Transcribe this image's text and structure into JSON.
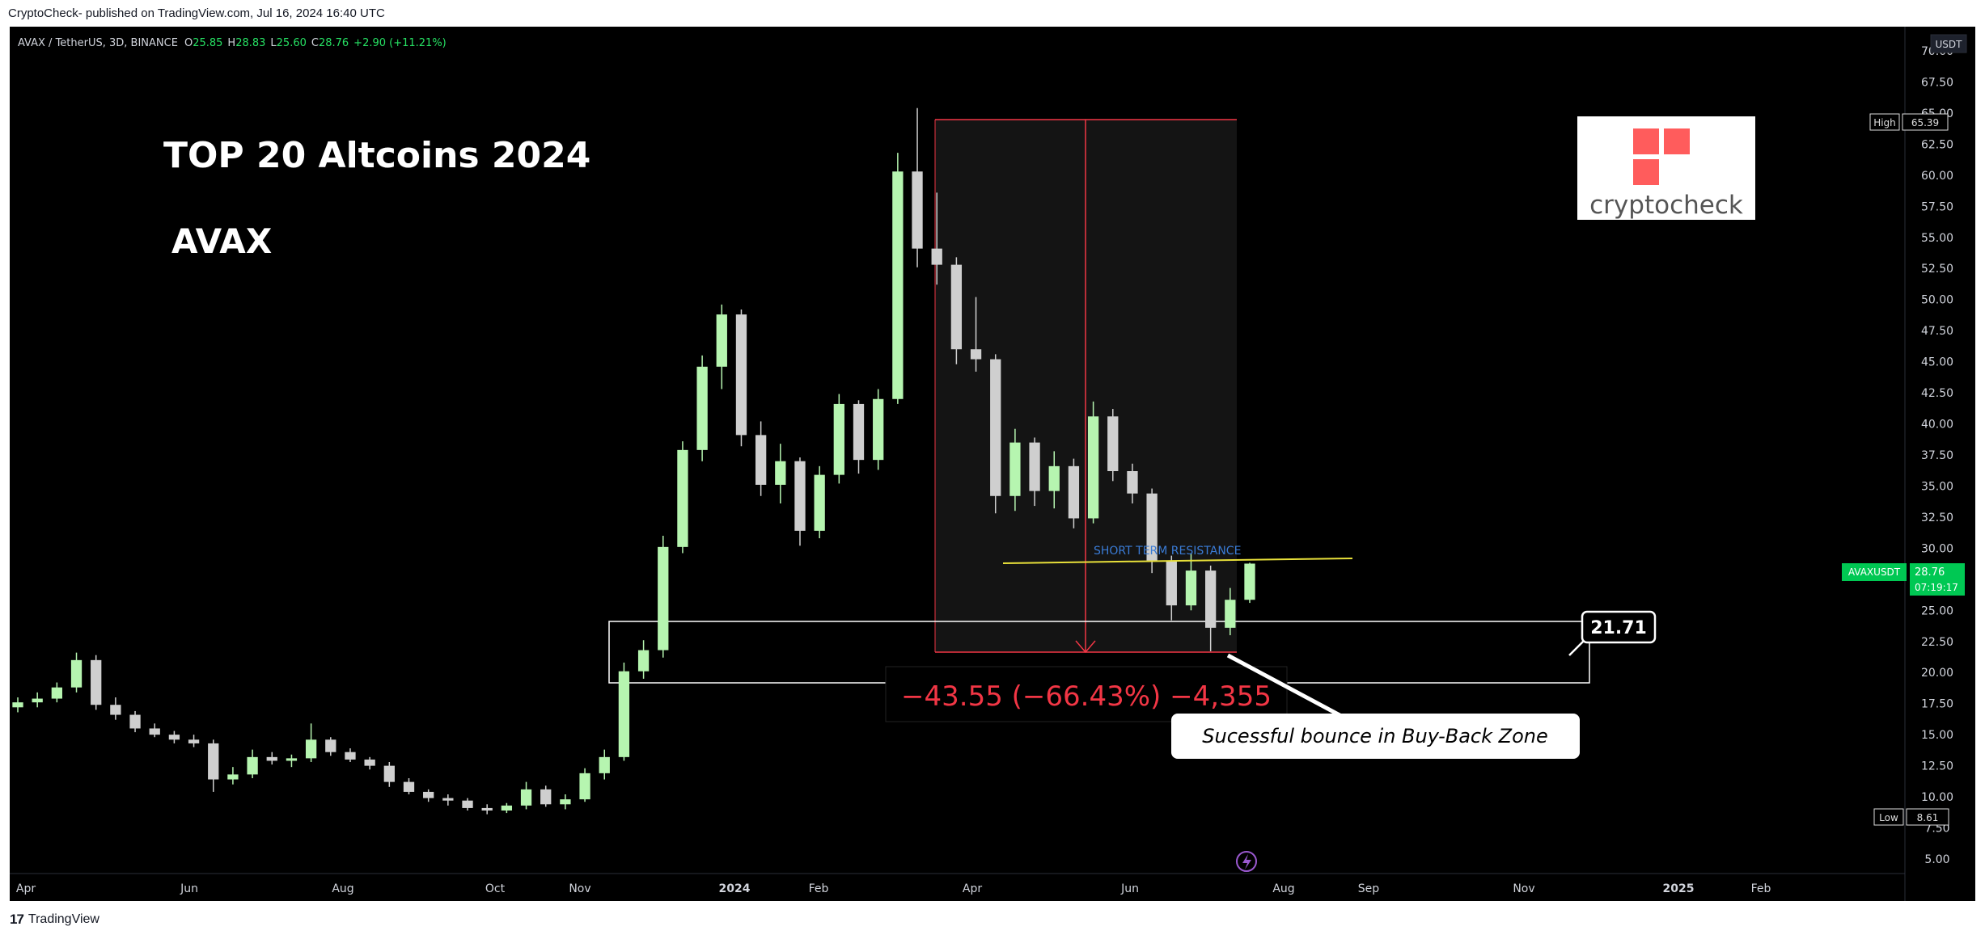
{
  "header": {
    "published": "CryptoCheck- published on TradingView.com, Jul 16, 2024 16:40 UTC"
  },
  "footer": {
    "brand": "TradingView"
  },
  "symbol_bar": {
    "symbol": "AVAX / TetherUS, 3D, BINANCE",
    "o_label": "O",
    "o": "25.85",
    "h_label": "H",
    "h": "28.83",
    "l_label": "L",
    "l": "25.60",
    "c_label": "C",
    "c": "28.76",
    "change": "+2.90 (+11.21%)"
  },
  "annotations": {
    "headline": "TOP 20 Altcoins 2024",
    "coin": "AVAX",
    "resistance_label": "SHORT TERM RESISTANCE",
    "measure_text": "−43.55 (−66.43%) −4,355",
    "callout_value": "21.71",
    "bounce_note": "Sucessful bounce in Buy-Back Zone",
    "logo_text": "cryptocheck"
  },
  "price_axis": {
    "currency": "USDT",
    "high_label": "High",
    "high_value": "65.39",
    "low_label": "Low",
    "low_value": "8.61",
    "last_symbol": "AVAXUSDT",
    "last_value": "28.76",
    "countdown": "07:19:17"
  },
  "colors": {
    "up": "#b6f5b0",
    "down": "#cfcfcf",
    "measure_red": "#f23645",
    "resistance": "#e8e03a",
    "resistance_label": "#3a7bd5",
    "last_price": "#00c853",
    "logo_red": "#ff5c5c"
  },
  "chart_data": {
    "type": "candlestick",
    "title": "AVAX / TetherUS, 3D, BINANCE",
    "ylim": [
      5,
      70
    ],
    "y_ticks": [
      "5.00",
      "7.50",
      "10.00",
      "12.50",
      "15.00",
      "17.50",
      "20.00",
      "22.50",
      "25.00",
      "27.50",
      "30.00",
      "32.50",
      "35.00",
      "37.50",
      "40.00",
      "42.50",
      "45.00",
      "47.50",
      "50.00",
      "52.50",
      "55.00",
      "57.50",
      "60.00",
      "62.50",
      "65.00",
      "67.50",
      "70.00"
    ],
    "x_ticks": [
      "Apr",
      "Jun",
      "Aug",
      "Oct",
      "Nov",
      "2024",
      "Feb",
      "Apr",
      "Jun",
      "Aug",
      "Sep",
      "Nov",
      "2025",
      "Feb"
    ],
    "series": [
      {
        "period": "2023 Apr",
        "open": 17.2,
        "high": 18.0,
        "low": 16.8,
        "close": 17.6
      },
      {
        "period": "2023 Apr",
        "open": 17.6,
        "high": 18.4,
        "low": 17.2,
        "close": 17.9
      },
      {
        "period": "2023 Apr",
        "open": 17.9,
        "high": 19.2,
        "low": 17.6,
        "close": 18.8
      },
      {
        "period": "2023 Apr",
        "open": 18.8,
        "high": 21.6,
        "low": 18.4,
        "close": 21.0
      },
      {
        "period": "2023 May",
        "open": 21.0,
        "high": 21.4,
        "low": 17.0,
        "close": 17.4
      },
      {
        "period": "2023 May",
        "open": 17.4,
        "high": 18.0,
        "low": 16.2,
        "close": 16.6
      },
      {
        "period": "2023 May",
        "open": 16.6,
        "high": 16.9,
        "low": 15.2,
        "close": 15.5
      },
      {
        "period": "2023 May",
        "open": 15.5,
        "high": 15.9,
        "low": 14.8,
        "close": 15.0
      },
      {
        "period": "2023 May",
        "open": 15.0,
        "high": 15.3,
        "low": 14.3,
        "close": 14.6
      },
      {
        "period": "2023 Jun",
        "open": 14.6,
        "high": 15.0,
        "low": 14.0,
        "close": 14.3
      },
      {
        "period": "2023 Jun",
        "open": 14.3,
        "high": 14.6,
        "low": 10.4,
        "close": 11.4
      },
      {
        "period": "2023 Jun",
        "open": 11.4,
        "high": 12.4,
        "low": 11.0,
        "close": 11.8
      },
      {
        "period": "2023 Jun",
        "open": 11.8,
        "high": 13.8,
        "low": 11.5,
        "close": 13.2
      },
      {
        "period": "2023 Jul",
        "open": 13.2,
        "high": 13.6,
        "low": 12.6,
        "close": 12.9
      },
      {
        "period": "2023 Jul",
        "open": 12.9,
        "high": 13.4,
        "low": 12.4,
        "close": 13.1
      },
      {
        "period": "2023 Jul",
        "open": 13.1,
        "high": 15.9,
        "low": 12.8,
        "close": 14.6
      },
      {
        "period": "2023 Jul",
        "open": 14.6,
        "high": 14.8,
        "low": 13.3,
        "close": 13.6
      },
      {
        "period": "2023 Aug",
        "open": 13.6,
        "high": 13.9,
        "low": 12.8,
        "close": 13.0
      },
      {
        "period": "2023 Aug",
        "open": 13.0,
        "high": 13.2,
        "low": 12.2,
        "close": 12.5
      },
      {
        "period": "2023 Aug",
        "open": 12.5,
        "high": 12.8,
        "low": 10.8,
        "close": 11.2
      },
      {
        "period": "2023 Aug",
        "open": 11.2,
        "high": 11.5,
        "low": 10.2,
        "close": 10.4
      },
      {
        "period": "2023 Sep",
        "open": 10.4,
        "high": 10.6,
        "low": 9.6,
        "close": 9.9
      },
      {
        "period": "2023 Sep",
        "open": 9.9,
        "high": 10.2,
        "low": 9.3,
        "close": 9.7
      },
      {
        "period": "2023 Sep",
        "open": 9.7,
        "high": 9.9,
        "low": 8.9,
        "close": 9.1
      },
      {
        "period": "2023 Sep",
        "open": 9.1,
        "high": 9.4,
        "low": 8.6,
        "close": 8.9
      },
      {
        "period": "2023 Oct",
        "open": 8.9,
        "high": 9.5,
        "low": 8.7,
        "close": 9.3
      },
      {
        "period": "2023 Oct",
        "open": 9.3,
        "high": 11.2,
        "low": 9.0,
        "close": 10.6
      },
      {
        "period": "2023 Oct",
        "open": 10.6,
        "high": 10.9,
        "low": 9.2,
        "close": 9.4
      },
      {
        "period": "2023 Oct",
        "open": 9.4,
        "high": 10.2,
        "low": 9.0,
        "close": 9.8
      },
      {
        "period": "2023 Nov",
        "open": 9.8,
        "high": 12.3,
        "low": 9.6,
        "close": 11.9
      },
      {
        "period": "2023 Nov",
        "open": 11.9,
        "high": 13.8,
        "low": 11.4,
        "close": 13.2
      },
      {
        "period": "2023 Nov",
        "open": 13.2,
        "high": 20.8,
        "low": 12.9,
        "close": 20.1
      },
      {
        "period": "2023 Nov",
        "open": 20.1,
        "high": 22.6,
        "low": 19.5,
        "close": 21.8
      },
      {
        "period": "2023 Dec",
        "open": 21.8,
        "high": 31.0,
        "low": 21.2,
        "close": 30.1
      },
      {
        "period": "2023 Dec",
        "open": 30.1,
        "high": 38.6,
        "low": 29.6,
        "close": 37.9
      },
      {
        "period": "2023 Dec",
        "open": 37.9,
        "high": 45.5,
        "low": 37.0,
        "close": 44.6
      },
      {
        "period": "2023 Dec",
        "open": 44.6,
        "high": 49.6,
        "low": 42.8,
        "close": 48.8
      },
      {
        "period": "2024 Jan",
        "open": 48.8,
        "high": 49.2,
        "low": 38.2,
        "close": 39.1
      },
      {
        "period": "2024 Jan",
        "open": 39.1,
        "high": 40.2,
        "low": 34.2,
        "close": 35.1
      },
      {
        "period": "2024 Jan",
        "open": 35.1,
        "high": 38.4,
        "low": 33.6,
        "close": 37.0
      },
      {
        "period": "2024 Jan",
        "open": 37.0,
        "high": 37.3,
        "low": 30.2,
        "close": 31.4
      },
      {
        "period": "2024 Feb",
        "open": 31.4,
        "high": 36.6,
        "low": 30.8,
        "close": 35.9
      },
      {
        "period": "2024 Feb",
        "open": 35.9,
        "high": 42.4,
        "low": 35.2,
        "close": 41.6
      },
      {
        "period": "2024 Feb",
        "open": 41.6,
        "high": 41.9,
        "low": 36.0,
        "close": 37.1
      },
      {
        "period": "2024 Feb",
        "open": 37.1,
        "high": 42.8,
        "low": 36.3,
        "close": 42.0
      },
      {
        "period": "2024 Mar",
        "open": 42.0,
        "high": 61.8,
        "low": 41.6,
        "close": 60.3
      },
      {
        "period": "2024 Mar",
        "open": 60.3,
        "high": 65.4,
        "low": 52.6,
        "close": 54.1
      },
      {
        "period": "2024 Mar",
        "open": 54.1,
        "high": 58.6,
        "low": 51.2,
        "close": 52.8
      },
      {
        "period": "2024 Mar",
        "open": 52.8,
        "high": 53.4,
        "low": 44.8,
        "close": 46.0
      },
      {
        "period": "2024 Apr",
        "open": 46.0,
        "high": 50.2,
        "low": 44.2,
        "close": 45.2
      },
      {
        "period": "2024 Apr",
        "open": 45.2,
        "high": 45.6,
        "low": 32.8,
        "close": 34.2
      },
      {
        "period": "2024 Apr",
        "open": 34.2,
        "high": 39.6,
        "low": 33.0,
        "close": 38.5
      },
      {
        "period": "2024 Apr",
        "open": 38.5,
        "high": 38.9,
        "low": 33.4,
        "close": 34.6
      },
      {
        "period": "2024 May",
        "open": 34.6,
        "high": 37.8,
        "low": 33.2,
        "close": 36.6
      },
      {
        "period": "2024 May",
        "open": 36.6,
        "high": 37.2,
        "low": 31.6,
        "close": 32.4
      },
      {
        "period": "2024 May",
        "open": 32.4,
        "high": 41.8,
        "low": 32.0,
        "close": 40.6
      },
      {
        "period": "2024 May",
        "open": 40.6,
        "high": 41.2,
        "low": 35.4,
        "close": 36.2
      },
      {
        "period": "2024 Jun",
        "open": 36.2,
        "high": 36.8,
        "low": 33.6,
        "close": 34.4
      },
      {
        "period": "2024 Jun",
        "open": 34.4,
        "high": 34.8,
        "low": 28.0,
        "close": 29.0
      },
      {
        "period": "2024 Jun",
        "open": 29.0,
        "high": 29.4,
        "low": 24.2,
        "close": 25.4
      },
      {
        "period": "2024 Jun",
        "open": 25.4,
        "high": 29.6,
        "low": 25.0,
        "close": 28.2
      },
      {
        "period": "2024 Jul",
        "open": 28.2,
        "high": 28.6,
        "low": 21.71,
        "close": 23.6
      },
      {
        "period": "2024 Jul",
        "open": 23.6,
        "high": 26.8,
        "low": 23.0,
        "close": 25.85
      },
      {
        "period": "2024 Jul",
        "open": 25.85,
        "high": 28.83,
        "low": 25.6,
        "close": 28.76
      }
    ]
  }
}
